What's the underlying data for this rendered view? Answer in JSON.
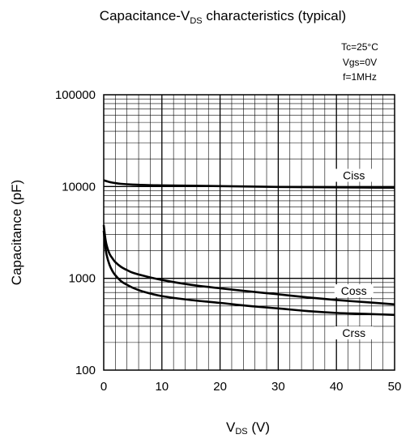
{
  "chart_data": {
    "type": "line",
    "title": "Capacitance-V",
    "title_sub": "DS",
    "title_rest": " characteristics (typical)",
    "conditions": [
      "Tc=25°C",
      "Vgs=0V",
      "f=1MHz"
    ],
    "xlabel": "V",
    "xlabel_sub": "DS",
    "xlabel_rest": " (V)",
    "ylabel": "Capacitance (pF)",
    "xlim": [
      0,
      50
    ],
    "ylim": [
      100,
      100000
    ],
    "yscale": "log",
    "grid": true,
    "x_ticks": [
      0,
      10,
      20,
      30,
      40,
      50
    ],
    "x_tick_labels": [
      "0",
      "10",
      "20",
      "30",
      "40",
      "50"
    ],
    "y_ticks": [
      100,
      1000,
      10000,
      100000
    ],
    "y_tick_labels": [
      "100",
      "1000",
      "10000",
      "100000"
    ],
    "series": [
      {
        "name": "Ciss",
        "x": [
          0,
          1,
          2,
          3,
          5,
          8,
          10,
          15,
          20,
          25,
          30,
          35,
          40,
          45,
          50
        ],
        "y": [
          11700,
          11200,
          10900,
          10700,
          10500,
          10350,
          10300,
          10200,
          10100,
          10000,
          9900,
          9850,
          9800,
          9750,
          9700
        ]
      },
      {
        "name": "Coss",
        "x": [
          0,
          0.25,
          0.5,
          1,
          1.5,
          2,
          3,
          4,
          5,
          7,
          10,
          15,
          20,
          25,
          30,
          35,
          40,
          45,
          50
        ],
        "y": [
          3800,
          2800,
          2300,
          1850,
          1650,
          1500,
          1330,
          1230,
          1150,
          1060,
          960,
          850,
          780,
          720,
          670,
          620,
          580,
          550,
          520
        ]
      },
      {
        "name": "Crss",
        "x": [
          0,
          0.25,
          0.5,
          1,
          1.5,
          2,
          3,
          4,
          5,
          7,
          10,
          15,
          20,
          25,
          30,
          35,
          40,
          45,
          50
        ],
        "y": [
          3300,
          2300,
          1800,
          1400,
          1200,
          1080,
          930,
          850,
          790,
          710,
          640,
          580,
          540,
          500,
          470,
          440,
          420,
          410,
          400
        ]
      }
    ]
  }
}
